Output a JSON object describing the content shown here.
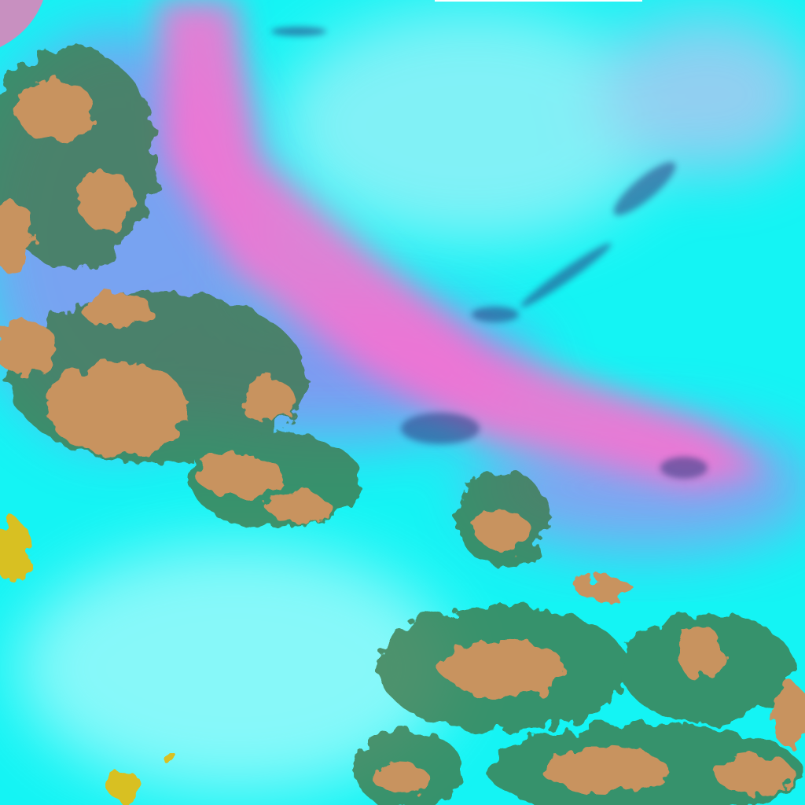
{
  "image": {
    "kind": "false-color satellite imagery",
    "colors": {
      "cloud_cyan": "#14f4f4",
      "cloud_light": "#9ff8fa",
      "dust_plume_pink": "#ff6fd0",
      "haze_violet": "#a880f0",
      "land_brown": "#c8935e",
      "vegetation_green": "#3f7a4a",
      "shadow_navy": "#2a3a80",
      "bright_yellow": "#d8c020"
    }
  }
}
